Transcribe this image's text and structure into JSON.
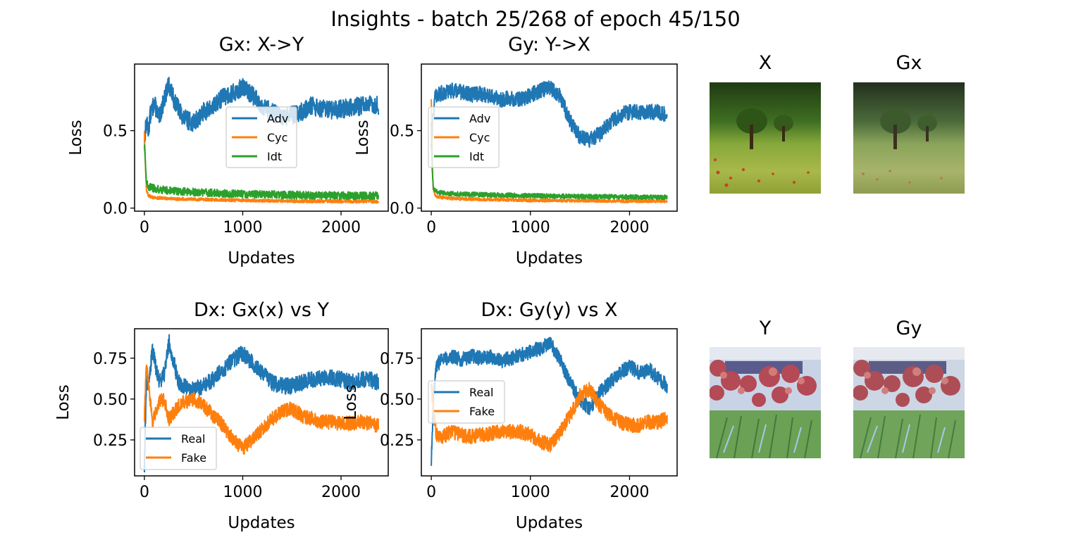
{
  "suptitle": "Insights - batch 25/268 of epoch 45/150",
  "colors": {
    "blue": "#1f77b4",
    "orange": "#ff7f0e",
    "green": "#2ca02c"
  },
  "images": {
    "x_label": "X",
    "gx_label": "Gx",
    "y_label": "Y",
    "gy_label": "Gy",
    "x_description_icon": "meadow-with-trees-photo",
    "y_description_icon": "flower-garden-painting"
  },
  "chart_data": [
    {
      "type": "line",
      "title": "Gx: X->Y",
      "xlabel": "Updates",
      "ylabel": "Loss",
      "xlim": [
        -100,
        2480
      ],
      "ylim": [
        -0.02,
        0.93
      ],
      "xticks": [
        0,
        1000,
        2000
      ],
      "yticks": [
        0.0,
        0.5
      ],
      "ytick_labels": [
        "0.0",
        "0.5"
      ],
      "legend_position": "center",
      "series": [
        {
          "name": "Adv",
          "color": "#1f77b4",
          "noise": 0.06,
          "x": [
            0,
            20,
            40,
            60,
            100,
            150,
            200,
            250,
            300,
            400,
            500,
            600,
            700,
            800,
            900,
            1000,
            1100,
            1200,
            1300,
            1400,
            1500,
            1600,
            1700,
            1800,
            1900,
            2000,
            2100,
            2200,
            2300,
            2380
          ],
          "y": [
            0.45,
            0.55,
            0.5,
            0.6,
            0.68,
            0.58,
            0.7,
            0.8,
            0.7,
            0.58,
            0.55,
            0.62,
            0.65,
            0.72,
            0.74,
            0.78,
            0.73,
            0.66,
            0.62,
            0.58,
            0.6,
            0.62,
            0.66,
            0.64,
            0.63,
            0.64,
            0.65,
            0.66,
            0.67,
            0.66
          ]
        },
        {
          "name": "Cyc",
          "color": "#ff7f0e",
          "noise": 0.01,
          "x": [
            0,
            10,
            20,
            40,
            80,
            150,
            300,
            600,
            1000,
            1500,
            2000,
            2380
          ],
          "y": [
            0.5,
            0.28,
            0.12,
            0.08,
            0.07,
            0.065,
            0.06,
            0.055,
            0.05,
            0.045,
            0.043,
            0.042
          ]
        },
        {
          "name": "Idt",
          "color": "#2ca02c",
          "noise": 0.025,
          "x": [
            0,
            10,
            20,
            40,
            80,
            150,
            300,
            600,
            1000,
            1500,
            2000,
            2380
          ],
          "y": [
            0.42,
            0.3,
            0.16,
            0.14,
            0.13,
            0.12,
            0.11,
            0.1,
            0.09,
            0.085,
            0.08,
            0.08
          ]
        }
      ]
    },
    {
      "type": "line",
      "title": "Gy: Y->X",
      "xlabel": "Updates",
      "ylabel": "Loss",
      "xlim": [
        -100,
        2480
      ],
      "ylim": [
        -0.02,
        0.93
      ],
      "xticks": [
        0,
        1000,
        2000
      ],
      "yticks": [
        0.0,
        0.5
      ],
      "ytick_labels": [
        "0.0",
        "0.5"
      ],
      "legend_position": "center left",
      "series": [
        {
          "name": "Adv",
          "color": "#1f77b4",
          "noise": 0.05,
          "x": [
            0,
            20,
            40,
            100,
            200,
            300,
            400,
            500,
            600,
            700,
            800,
            900,
            1000,
            1100,
            1200,
            1300,
            1400,
            1500,
            1600,
            1700,
            1800,
            1900,
            2000,
            2100,
            2200,
            2300,
            2380
          ],
          "y": [
            0.4,
            0.6,
            0.72,
            0.74,
            0.76,
            0.75,
            0.73,
            0.74,
            0.72,
            0.7,
            0.71,
            0.7,
            0.73,
            0.76,
            0.78,
            0.72,
            0.56,
            0.46,
            0.44,
            0.48,
            0.55,
            0.6,
            0.62,
            0.62,
            0.62,
            0.62,
            0.6
          ]
        },
        {
          "name": "Cyc",
          "color": "#ff7f0e",
          "noise": 0.01,
          "x": [
            0,
            10,
            20,
            40,
            80,
            150,
            300,
            600,
            1000,
            1500,
            2000,
            2380
          ],
          "y": [
            0.7,
            0.3,
            0.12,
            0.08,
            0.07,
            0.065,
            0.06,
            0.055,
            0.05,
            0.048,
            0.045,
            0.045
          ]
        },
        {
          "name": "Idt",
          "color": "#2ca02c",
          "noise": 0.015,
          "x": [
            0,
            10,
            20,
            40,
            80,
            150,
            300,
            600,
            1000,
            1500,
            2000,
            2380
          ],
          "y": [
            0.55,
            0.25,
            0.13,
            0.11,
            0.1,
            0.095,
            0.09,
            0.085,
            0.08,
            0.075,
            0.072,
            0.07
          ]
        }
      ]
    },
    {
      "type": "line",
      "title": "Dx: Gx(x) vs Y",
      "xlabel": "Updates",
      "ylabel": "Loss",
      "xlim": [
        -100,
        2480
      ],
      "ylim": [
        0.03,
        0.93
      ],
      "xticks": [
        0,
        1000,
        2000
      ],
      "yticks": [
        0.25,
        0.5,
        0.75
      ],
      "ytick_labels": [
        "0.25",
        "0.50",
        "0.75"
      ],
      "legend_position": "lower left",
      "series": [
        {
          "name": "Real",
          "color": "#1f77b4",
          "noise": 0.05,
          "x": [
            0,
            20,
            50,
            80,
            150,
            200,
            250,
            300,
            350,
            400,
            500,
            600,
            700,
            800,
            900,
            1000,
            1100,
            1200,
            1300,
            1400,
            1500,
            1600,
            1700,
            1800,
            1900,
            2000,
            2100,
            2200,
            2300,
            2380
          ],
          "y": [
            0.1,
            0.6,
            0.62,
            0.8,
            0.6,
            0.65,
            0.85,
            0.72,
            0.6,
            0.58,
            0.56,
            0.58,
            0.62,
            0.68,
            0.74,
            0.78,
            0.72,
            0.66,
            0.6,
            0.58,
            0.58,
            0.6,
            0.62,
            0.63,
            0.63,
            0.62,
            0.6,
            0.62,
            0.62,
            0.6
          ]
        },
        {
          "name": "Fake",
          "color": "#ff7f0e",
          "noise": 0.045,
          "x": [
            0,
            20,
            50,
            80,
            150,
            200,
            250,
            300,
            350,
            400,
            500,
            600,
            700,
            800,
            900,
            1000,
            1100,
            1200,
            1300,
            1400,
            1500,
            1600,
            1700,
            1800,
            1900,
            2000,
            2100,
            2200,
            2300,
            2380
          ],
          "y": [
            0.4,
            0.7,
            0.55,
            0.35,
            0.48,
            0.5,
            0.38,
            0.42,
            0.46,
            0.48,
            0.5,
            0.46,
            0.4,
            0.34,
            0.25,
            0.2,
            0.25,
            0.32,
            0.38,
            0.42,
            0.44,
            0.4,
            0.38,
            0.36,
            0.36,
            0.35,
            0.35,
            0.36,
            0.35,
            0.34
          ]
        }
      ]
    },
    {
      "type": "line",
      "title": "Dx: Gy(y) vs X",
      "xlabel": "Updates",
      "ylabel": "Loss",
      "xlim": [
        -100,
        2480
      ],
      "ylim": [
        0.03,
        0.93
      ],
      "xticks": [
        0,
        1000,
        2000
      ],
      "yticks": [
        0.25,
        0.5,
        0.75
      ],
      "ytick_labels": [
        "0.25",
        "0.50",
        "0.75"
      ],
      "legend_position": "center left",
      "series": [
        {
          "name": "Real",
          "color": "#1f77b4",
          "noise": 0.045,
          "x": [
            0,
            20,
            50,
            100,
            200,
            300,
            400,
            500,
            600,
            700,
            800,
            900,
            1000,
            1100,
            1200,
            1300,
            1400,
            1500,
            1600,
            1700,
            1800,
            1900,
            2000,
            2100,
            2200,
            2300,
            2380
          ],
          "y": [
            0.1,
            0.5,
            0.7,
            0.74,
            0.76,
            0.74,
            0.76,
            0.75,
            0.76,
            0.73,
            0.75,
            0.77,
            0.79,
            0.81,
            0.84,
            0.74,
            0.6,
            0.5,
            0.44,
            0.54,
            0.6,
            0.66,
            0.7,
            0.66,
            0.68,
            0.62,
            0.58
          ]
        },
        {
          "name": "Fake",
          "color": "#ff7f0e",
          "noise": 0.045,
          "x": [
            0,
            20,
            50,
            100,
            200,
            300,
            400,
            500,
            600,
            700,
            800,
            900,
            1000,
            1100,
            1200,
            1300,
            1400,
            1500,
            1600,
            1700,
            1800,
            1900,
            2000,
            2100,
            2200,
            2300,
            2380
          ],
          "y": [
            0.6,
            0.45,
            0.28,
            0.26,
            0.3,
            0.28,
            0.27,
            0.28,
            0.29,
            0.3,
            0.3,
            0.3,
            0.28,
            0.24,
            0.22,
            0.3,
            0.4,
            0.52,
            0.56,
            0.46,
            0.4,
            0.36,
            0.34,
            0.34,
            0.36,
            0.36,
            0.38
          ]
        }
      ]
    }
  ]
}
